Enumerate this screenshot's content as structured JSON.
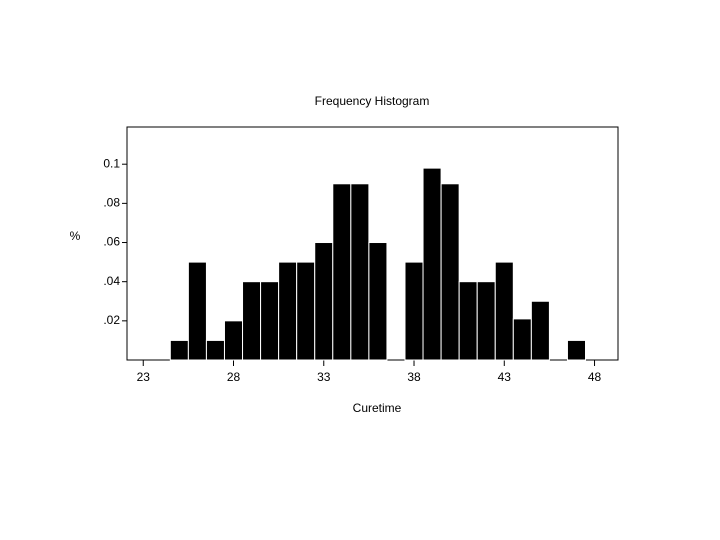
{
  "chart_data": {
    "type": "histogram",
    "title": "Frequency Histogram",
    "x_label": "Curetime",
    "y_label": "%",
    "bins": [
      24.5,
      25.5,
      26.5,
      27.5,
      28.5,
      29.5,
      30.5,
      31.5,
      32.5,
      33.5,
      34.5,
      35.5,
      36.5,
      37.5,
      38.5,
      39.5,
      40.5,
      41.5,
      42.5,
      43.5,
      44.5,
      45.5,
      46.5,
      47.5
    ],
    "values": [
      0.01,
      0.05,
      0.01,
      0.02,
      0.04,
      0.04,
      0.05,
      0.05,
      0.06,
      0.09,
      0.09,
      0.06,
      0,
      0.05,
      0.098,
      0.09,
      0.04,
      0.04,
      0.05,
      0.021,
      0.03,
      0,
      0.01
    ],
    "color": "#000000",
    "xlim": [
      22.1,
      49.3
    ],
    "ylim": [
      0,
      0.119
    ],
    "xticks": [
      23,
      28,
      33,
      38,
      43,
      48
    ],
    "yticks": [
      {
        "value": 0.02,
        "label": ".02"
      },
      {
        "value": 0.04,
        "label": ".04"
      },
      {
        "value": 0.06,
        "label": ".06"
      },
      {
        "value": 0.08,
        "label": ".08"
      },
      0.1
    ]
  }
}
